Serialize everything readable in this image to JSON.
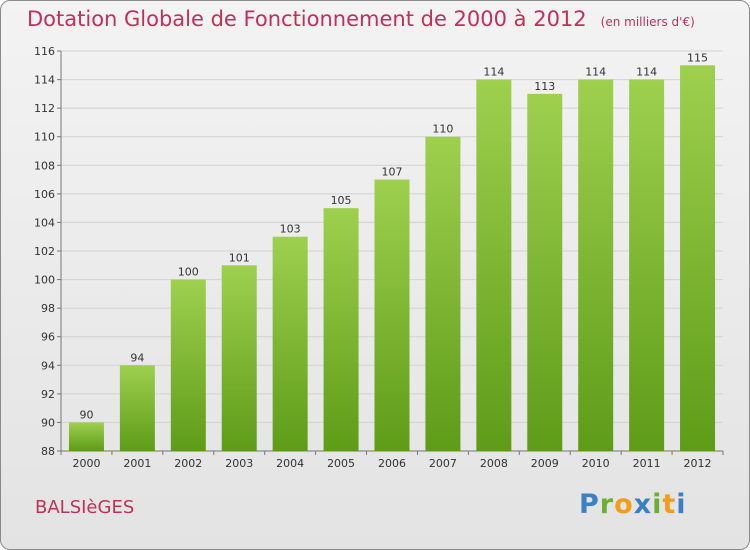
{
  "chart_data": {
    "type": "bar",
    "title": "Dotation Globale de Fonctionnement de 2000 à 2012",
    "unit_label": "(en milliers d'€)",
    "categories": [
      "2000",
      "2001",
      "2002",
      "2003",
      "2004",
      "2005",
      "2006",
      "2007",
      "2008",
      "2009",
      "2010",
      "2011",
      "2012"
    ],
    "values": [
      90,
      94,
      100,
      101,
      103,
      105,
      107,
      110,
      114,
      113,
      114,
      114,
      115
    ],
    "ylim": [
      88,
      116
    ],
    "yticks": [
      88,
      90,
      92,
      94,
      96,
      98,
      100,
      102,
      104,
      106,
      108,
      110,
      112,
      114,
      116
    ],
    "grid": true,
    "bar_color": "#7fbf2e"
  },
  "commune": "BALSIèGES",
  "logo": "Proxiti"
}
